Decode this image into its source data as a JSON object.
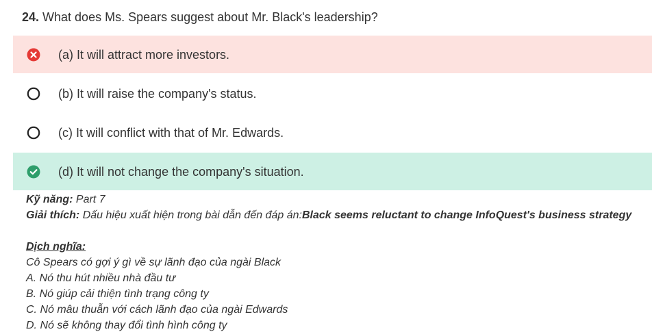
{
  "question": {
    "number": "24.",
    "text": "What does Ms. Spears suggest about Mr. Black's leadership?"
  },
  "options": [
    {
      "label": "(a) It will attract more investors.",
      "state": "wrong",
      "icon": "x-circle-icon"
    },
    {
      "label": "(b) It will raise the company's status.",
      "state": "unselected",
      "icon": "radio-empty-icon"
    },
    {
      "label": "(c) It will conflict with that of Mr. Edwards.",
      "state": "unselected",
      "icon": "radio-empty-icon"
    },
    {
      "label": "(d) It will not change the company's situation.",
      "state": "correct",
      "icon": "check-circle-icon"
    }
  ],
  "colors": {
    "wrong_bg": "#fde2df",
    "wrong_icon": "#e53935",
    "correct_bg": "#cdf0e4",
    "correct_icon": "#2e9e6b",
    "radio_border": "#222222"
  },
  "explanation": {
    "skill_label": "Kỹ năng:",
    "skill_value": "Part 7",
    "explain_label": "Giải thích:",
    "explain_text": "Dấu hiệu xuất hiện trong bài dẫn đến đáp án:",
    "explain_bold": "Black seems reluctant to change InfoQuest's business strategy",
    "translation_label": "Dịch nghĩa:",
    "translation_lines": [
      "Cô Spears có gợi ý gì về sự lãnh đạo của ngài Black",
      "A. Nó thu hút nhiều nhà đầu tư",
      "B. Nó giúp cải thiện tình trạng công ty",
      "C. Nó mâu thuẫn với cách lãnh đạo của ngài Edwards",
      "D. Nó sẽ không thay đổi tình hình công ty"
    ]
  }
}
